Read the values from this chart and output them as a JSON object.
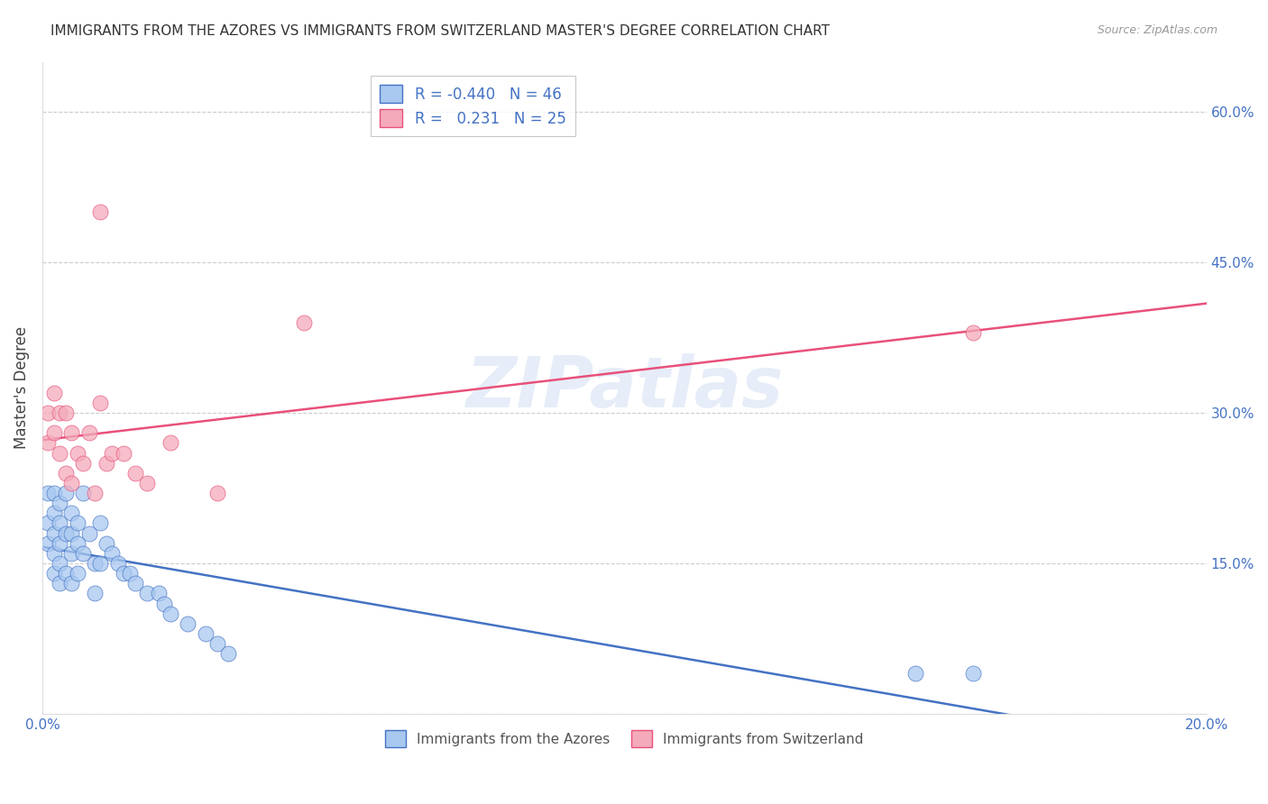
{
  "title": "IMMIGRANTS FROM THE AZORES VS IMMIGRANTS FROM SWITZERLAND MASTER'S DEGREE CORRELATION CHART",
  "source": "Source: ZipAtlas.com",
  "xlabel_azores": "Immigrants from the Azores",
  "xlabel_switzerland": "Immigrants from Switzerland",
  "ylabel": "Master's Degree",
  "legend_r_azores": "R = -0.440",
  "legend_n_azores": "N = 46",
  "legend_r_switzerland": "R =  0.231",
  "legend_n_switzerland": "N = 25",
  "color_azores": "#A8C8F0",
  "color_switzerland": "#F4AABA",
  "color_azores_line": "#4472C4",
  "color_switzerland_line": "#E8507A",
  "color_axis_labels": "#4472C4",
  "xlim": [
    0.0,
    0.2
  ],
  "ylim": [
    0.0,
    0.65
  ],
  "yticks": [
    0.0,
    0.15,
    0.3,
    0.45,
    0.6
  ],
  "ytick_labels": [
    "",
    "15.0%",
    "30.0%",
    "45.0%",
    "60.0%"
  ],
  "xticks": [
    0.0,
    0.04,
    0.08,
    0.12,
    0.16,
    0.2
  ],
  "xtick_labels": [
    "0.0%",
    "",
    "",
    "",
    "",
    "20.0%"
  ],
  "azores_x": [
    0.001,
    0.001,
    0.001,
    0.002,
    0.002,
    0.002,
    0.002,
    0.002,
    0.003,
    0.003,
    0.003,
    0.003,
    0.003,
    0.004,
    0.004,
    0.004,
    0.005,
    0.005,
    0.005,
    0.005,
    0.006,
    0.006,
    0.006,
    0.007,
    0.007,
    0.008,
    0.009,
    0.009,
    0.01,
    0.01,
    0.011,
    0.012,
    0.013,
    0.014,
    0.015,
    0.016,
    0.018,
    0.02,
    0.021,
    0.022,
    0.025,
    0.028,
    0.03,
    0.032,
    0.15,
    0.16
  ],
  "azores_y": [
    0.22,
    0.19,
    0.17,
    0.22,
    0.2,
    0.18,
    0.16,
    0.14,
    0.21,
    0.19,
    0.17,
    0.15,
    0.13,
    0.22,
    0.18,
    0.14,
    0.2,
    0.18,
    0.16,
    0.13,
    0.19,
    0.17,
    0.14,
    0.22,
    0.16,
    0.18,
    0.15,
    0.12,
    0.19,
    0.15,
    0.17,
    0.16,
    0.15,
    0.14,
    0.14,
    0.13,
    0.12,
    0.12,
    0.11,
    0.1,
    0.09,
    0.08,
    0.07,
    0.06,
    0.04,
    0.04
  ],
  "switzerland_x": [
    0.001,
    0.001,
    0.002,
    0.002,
    0.003,
    0.003,
    0.004,
    0.004,
    0.005,
    0.005,
    0.006,
    0.007,
    0.008,
    0.009,
    0.01,
    0.011,
    0.012,
    0.014,
    0.016,
    0.018,
    0.022,
    0.03,
    0.045,
    0.16,
    0.01
  ],
  "switzerland_y": [
    0.3,
    0.27,
    0.32,
    0.28,
    0.3,
    0.26,
    0.3,
    0.24,
    0.28,
    0.23,
    0.26,
    0.25,
    0.28,
    0.22,
    0.31,
    0.25,
    0.26,
    0.26,
    0.24,
    0.23,
    0.27,
    0.22,
    0.39,
    0.38,
    0.5
  ],
  "watermark": "ZIPatlas",
  "background_color": "#FFFFFF",
  "grid_color": "#CCCCCC",
  "title_fontsize": 11,
  "tick_fontsize": 11,
  "legend_fontsize": 12
}
